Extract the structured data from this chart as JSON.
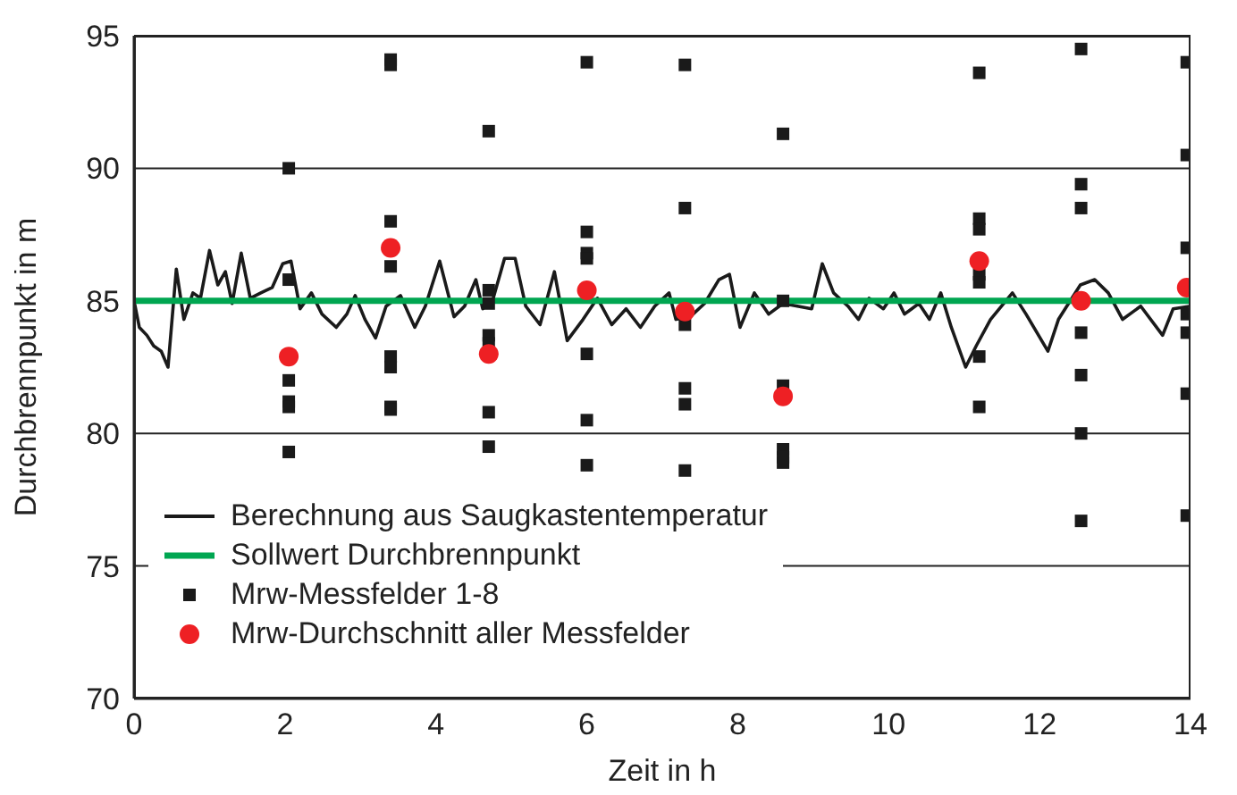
{
  "chart_data": {
    "type": "line",
    "xlabel": "Zeit in h",
    "ylabel": "Durchbrennpunkt in m",
    "xlim": [
      0,
      14
    ],
    "xticks": [
      0,
      2,
      4,
      6,
      8,
      10,
      12,
      14
    ],
    "ylim": [
      70,
      95
    ],
    "yticks": [
      70,
      75,
      80,
      85,
      90,
      95
    ],
    "grid": "y",
    "legend": "bottom left",
    "series": [
      {
        "name": "Berechnung aus Saugkastentemperatur",
        "color": "#1a1a1a",
        "marker": "none",
        "x": [
          0.0,
          0.07,
          0.17,
          0.26,
          0.36,
          0.45,
          0.56,
          0.66,
          0.78,
          0.88,
          1.0,
          1.11,
          1.21,
          1.3,
          1.42,
          1.54,
          1.68,
          1.83,
          1.97,
          2.08,
          2.2,
          2.35,
          2.49,
          2.68,
          2.82,
          2.93,
          3.06,
          3.2,
          3.34,
          3.53,
          3.72,
          3.86,
          4.05,
          4.24,
          4.38,
          4.53,
          4.62,
          4.76,
          4.91,
          5.05,
          5.19,
          5.38,
          5.57,
          5.74,
          5.95,
          6.14,
          6.33,
          6.52,
          6.71,
          6.9,
          7.09,
          7.18,
          7.37,
          7.56,
          7.75,
          7.89,
          8.03,
          8.22,
          8.41,
          8.6,
          8.79,
          8.98,
          9.12,
          9.27,
          9.46,
          9.6,
          9.74,
          9.93,
          10.07,
          10.21,
          10.4,
          10.54,
          10.69,
          10.83,
          11.02,
          11.16,
          11.35,
          11.64,
          11.82,
          12.11,
          12.25,
          12.54,
          12.73,
          12.91,
          13.1,
          13.34,
          13.63,
          13.77,
          14.0
        ],
        "values": [
          85.0,
          84.0,
          83.7,
          83.3,
          83.1,
          82.5,
          86.2,
          84.3,
          85.3,
          85.1,
          86.9,
          85.6,
          86.1,
          84.9,
          86.8,
          85.1,
          85.3,
          85.5,
          86.4,
          86.5,
          84.7,
          85.3,
          84.5,
          84.0,
          84.5,
          85.2,
          84.3,
          83.6,
          84.8,
          85.2,
          84.0,
          84.8,
          86.5,
          84.4,
          84.8,
          85.8,
          84.7,
          85.1,
          86.6,
          86.6,
          84.8,
          84.1,
          86.1,
          83.5,
          84.3,
          85.1,
          84.1,
          84.7,
          84.0,
          84.8,
          85.3,
          84.3,
          84.4,
          84.9,
          85.8,
          86.0,
          84.0,
          85.3,
          84.5,
          84.9,
          84.8,
          84.7,
          86.4,
          85.3,
          84.8,
          84.3,
          85.1,
          84.7,
          85.3,
          84.5,
          84.9,
          84.3,
          85.3,
          84.0,
          82.5,
          83.3,
          84.3,
          85.3,
          84.5,
          83.1,
          84.3,
          85.6,
          85.8,
          85.3,
          84.3,
          84.8,
          83.7,
          84.7,
          84.8
        ]
      },
      {
        "name": "Sollwert Durchbrennpunkt",
        "color": "#00a651",
        "marker": "none",
        "x": [
          0,
          14
        ],
        "values": [
          85,
          85
        ]
      },
      {
        "name": "Mrw-Messfelder 1-8",
        "type": "scatter",
        "color": "#1a1a1a",
        "marker": "square",
        "x": [
          2.05,
          2.05,
          2.05,
          2.05,
          2.05,
          2.05,
          3.4,
          3.4,
          3.4,
          3.4,
          3.4,
          3.4,
          3.4,
          3.4,
          4.7,
          4.7,
          4.7,
          4.7,
          4.7,
          4.7,
          4.7,
          6.0,
          6.0,
          6.0,
          6.0,
          6.0,
          6.0,
          6.0,
          7.3,
          7.3,
          7.3,
          7.3,
          7.3,
          7.3,
          8.6,
          8.6,
          8.6,
          8.6,
          8.6,
          8.6,
          11.2,
          11.2,
          11.2,
          11.2,
          11.2,
          11.2,
          11.2,
          12.55,
          12.55,
          12.55,
          12.55,
          12.55,
          12.55,
          12.55,
          13.95,
          13.95,
          13.95,
          13.95,
          13.95,
          13.95,
          13.95
        ],
        "values": [
          90.0,
          85.8,
          82.0,
          81.2,
          81.0,
          79.3,
          94.1,
          93.9,
          88.0,
          86.3,
          82.9,
          82.5,
          81.0,
          80.9,
          91.4,
          85.4,
          84.9,
          83.7,
          83.4,
          80.8,
          79.5,
          94.0,
          87.6,
          86.8,
          86.6,
          83.0,
          80.5,
          78.8,
          93.9,
          88.5,
          84.1,
          81.7,
          81.1,
          78.6,
          91.3,
          85.0,
          81.8,
          79.4,
          79.1,
          78.9,
          93.6,
          88.1,
          87.7,
          86.0,
          85.7,
          82.9,
          81.0,
          94.5,
          89.4,
          88.5,
          83.8,
          82.2,
          80.0,
          76.7,
          94.0,
          90.5,
          87.0,
          84.5,
          83.8,
          81.5,
          76.9
        ]
      },
      {
        "name": "Mrw-Durchschnitt aller Messfelder",
        "type": "scatter",
        "color": "#ee2024",
        "marker": "circle",
        "x": [
          2.05,
          3.4,
          4.7,
          6.0,
          7.3,
          8.6,
          11.2,
          12.55,
          13.95
        ],
        "values": [
          82.9,
          87.0,
          83.0,
          85.4,
          84.6,
          81.4,
          86.5,
          85.0,
          85.5
        ]
      }
    ]
  }
}
